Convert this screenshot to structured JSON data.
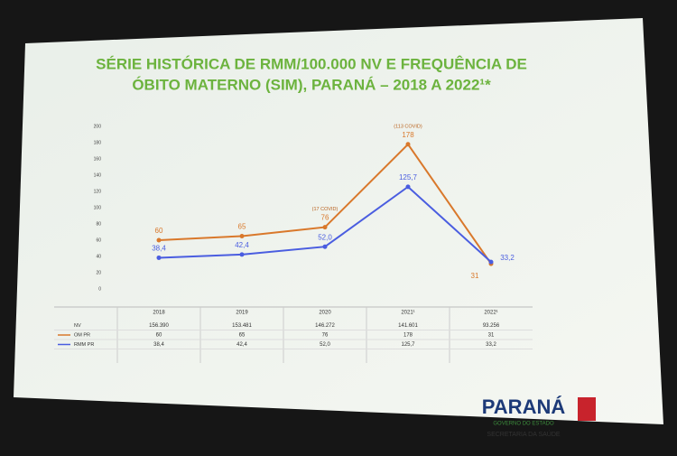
{
  "chart_data": {
    "type": "line",
    "title": "SÉRIE HISTÓRICA DE RMM/100.000 NV E FREQUÊNCIA DE",
    "subtitle": "ÓBITO MATERNO (SIM), PARANÁ – 2018 A 2022¹*",
    "categories": [
      "2018",
      "2019",
      "2020",
      "2021¹",
      "2022¹"
    ],
    "series": [
      {
        "name": "OM PR",
        "color": "#d9782b",
        "values": [
          60,
          65,
          76,
          178,
          31
        ]
      },
      {
        "name": "RMM PR",
        "color": "#4a5de0",
        "values": [
          38.4,
          42.4,
          52.0,
          125.7,
          33.2
        ],
        "value_labels": [
          "38,4",
          "42,4",
          "52,0",
          "125,7",
          "33,2"
        ]
      }
    ],
    "notes": [
      null,
      null,
      "(17 COVID)",
      "(113 COVID)",
      null
    ],
    "nv": {
      "name": "NV",
      "values": [
        156390,
        153481,
        146272,
        141601,
        93256
      ],
      "value_labels": [
        "156.390",
        "153.481",
        "146.272",
        "141.601",
        "93.256"
      ]
    },
    "ylim": [
      0,
      200
    ],
    "yticks": [
      0,
      20,
      40,
      60,
      80,
      100,
      120,
      140,
      160,
      180,
      200
    ],
    "grid": false
  },
  "footer": {
    "brand": "PARANÁ",
    "tagline": "GOVERNO DO ESTADO",
    "department": "SECRETARIA DA SAÚDE"
  }
}
